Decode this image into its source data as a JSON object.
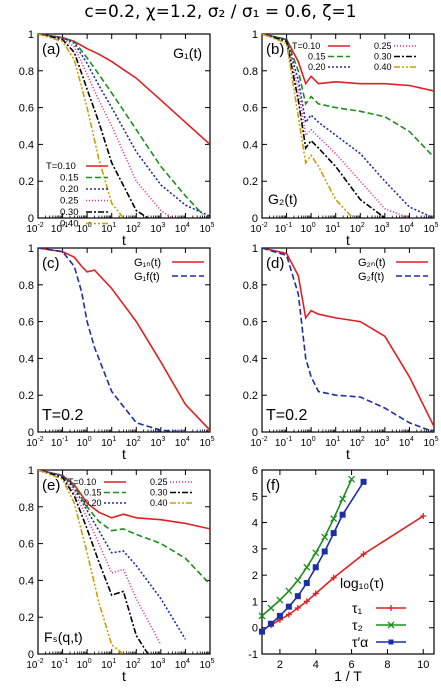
{
  "figure": {
    "title": "c=0.2, χ=1.2, σ₂ / σ₁ = 0.6, ζ=1"
  },
  "chart_data": [
    {
      "id": "a",
      "type": "line",
      "panel_label": "(a)",
      "corner_label": "G₁(t)",
      "xlabel": "t",
      "ylabel": "",
      "xscale": "log",
      "xlim": [
        0.01,
        100000
      ],
      "ylim": [
        0,
        1
      ],
      "legend_title": "T=",
      "legend_position": "bottom-left",
      "series": [
        {
          "name": "0.10",
          "color": "#e02020",
          "dash": "solid",
          "x": [
            0.01,
            0.1,
            0.3,
            1,
            3,
            10,
            100,
            1000,
            10000,
            100000
          ],
          "y": [
            1.0,
            0.98,
            0.96,
            0.92,
            0.89,
            0.85,
            0.76,
            0.64,
            0.52,
            0.4
          ]
        },
        {
          "name": "0.15",
          "color": "#1a8f1a",
          "dash": "dashed",
          "x": [
            0.01,
            0.1,
            0.3,
            1,
            3,
            10,
            100,
            1000,
            10000,
            50000
          ],
          "y": [
            1.0,
            0.98,
            0.96,
            0.87,
            0.78,
            0.68,
            0.48,
            0.28,
            0.12,
            0.02
          ]
        },
        {
          "name": "0.20",
          "color": "#1c2ea8",
          "dash": "dotted",
          "x": [
            0.01,
            0.1,
            0.3,
            1,
            3,
            10,
            100,
            1000,
            10000,
            100000
          ],
          "y": [
            1.0,
            0.98,
            0.95,
            0.84,
            0.72,
            0.6,
            0.36,
            0.18,
            0.07,
            0.01
          ]
        },
        {
          "name": "0.25",
          "color": "#e0208f",
          "dash": "dot",
          "x": [
            0.01,
            0.1,
            0.3,
            1,
            3,
            10,
            100,
            1000,
            3000
          ],
          "y": [
            1.0,
            0.98,
            0.93,
            0.78,
            0.64,
            0.5,
            0.2,
            0.04,
            0.0
          ]
        },
        {
          "name": "0.30",
          "color": "#000000",
          "dash": "dashdot",
          "x": [
            0.01,
            0.1,
            0.3,
            1,
            3,
            10,
            100,
            300
          ],
          "y": [
            1.0,
            0.97,
            0.9,
            0.7,
            0.52,
            0.3,
            0.04,
            0.0
          ]
        },
        {
          "name": "0.40",
          "color": "#c8a000",
          "dash": "dashdotdot",
          "x": [
            0.01,
            0.1,
            0.3,
            1,
            3,
            10,
            30
          ],
          "y": [
            1.0,
            0.96,
            0.86,
            0.6,
            0.32,
            0.08,
            0.0
          ]
        }
      ]
    },
    {
      "id": "b",
      "type": "line",
      "panel_label": "(b)",
      "corner_label": "G₂(t)",
      "xlabel": "t",
      "ylabel": "",
      "xscale": "log",
      "xlim": [
        0.01,
        100000
      ],
      "ylim": [
        0,
        1
      ],
      "legend_title": "T=",
      "legend_position": "top-right",
      "series": [
        {
          "name": "0.10",
          "color": "#e02020",
          "dash": "solid",
          "x": [
            0.01,
            0.1,
            0.3,
            0.6,
            1,
            2,
            10,
            100,
            1000,
            10000,
            100000
          ],
          "y": [
            1.0,
            0.97,
            0.85,
            0.73,
            0.77,
            0.73,
            0.74,
            0.73,
            0.73,
            0.72,
            0.69
          ]
        },
        {
          "name": "0.15",
          "color": "#1a8f1a",
          "dash": "dashed",
          "x": [
            0.01,
            0.1,
            0.3,
            0.6,
            1,
            2,
            10,
            100,
            1000,
            10000,
            100000
          ],
          "y": [
            1.0,
            0.97,
            0.8,
            0.62,
            0.66,
            0.62,
            0.6,
            0.58,
            0.55,
            0.47,
            0.33
          ]
        },
        {
          "name": "0.20",
          "color": "#1c2ea8",
          "dash": "dotted",
          "x": [
            0.01,
            0.1,
            0.3,
            0.6,
            1,
            2,
            10,
            100,
            1000,
            10000,
            100000
          ],
          "y": [
            1.0,
            0.97,
            0.75,
            0.52,
            0.56,
            0.52,
            0.45,
            0.35,
            0.2,
            0.06,
            0.0
          ]
        },
        {
          "name": "0.25",
          "color": "#e0208f",
          "dash": "dot",
          "x": [
            0.01,
            0.1,
            0.3,
            0.6,
            1,
            2,
            10,
            100,
            1000,
            10000
          ],
          "y": [
            1.0,
            0.96,
            0.7,
            0.45,
            0.48,
            0.44,
            0.35,
            0.2,
            0.05,
            0.0
          ]
        },
        {
          "name": "0.30",
          "color": "#000000",
          "dash": "dashdot",
          "x": [
            0.01,
            0.1,
            0.3,
            0.6,
            1,
            2,
            10,
            100,
            1000
          ],
          "y": [
            1.0,
            0.96,
            0.64,
            0.38,
            0.42,
            0.38,
            0.28,
            0.1,
            0.0
          ]
        },
        {
          "name": "0.40",
          "color": "#c8a000",
          "dash": "dashdotdot",
          "x": [
            0.01,
            0.1,
            0.3,
            0.6,
            1,
            2,
            10,
            50
          ],
          "y": [
            1.0,
            0.95,
            0.55,
            0.3,
            0.34,
            0.28,
            0.1,
            0.0
          ]
        }
      ]
    },
    {
      "id": "c",
      "type": "line",
      "panel_label": "(c)",
      "annotation": "T=0.2",
      "xlabel": "t",
      "ylabel": "",
      "xscale": "log",
      "xlim": [
        0.01,
        100000
      ],
      "ylim": [
        0,
        1
      ],
      "legend_position": "top-right",
      "series": [
        {
          "name": "G₁ₙ(t)",
          "color": "#e02020",
          "dash": "solid",
          "x": [
            0.01,
            0.1,
            0.3,
            0.6,
            1,
            2,
            10,
            100,
            1000,
            10000,
            100000
          ],
          "y": [
            1.0,
            0.98,
            0.95,
            0.9,
            0.87,
            0.88,
            0.78,
            0.6,
            0.38,
            0.15,
            0.01
          ]
        },
        {
          "name": "G₁f(t)",
          "color": "#1c2ea8",
          "dash": "dashed",
          "x": [
            0.01,
            0.1,
            0.3,
            0.6,
            1,
            2,
            10,
            100,
            1000,
            10000,
            100000
          ],
          "y": [
            1.0,
            0.98,
            0.9,
            0.76,
            0.6,
            0.46,
            0.22,
            0.05,
            0.01,
            0.0,
            0.0
          ]
        }
      ]
    },
    {
      "id": "d",
      "type": "line",
      "panel_label": "(d)",
      "annotation": "T=0.2",
      "xlabel": "t",
      "ylabel": "",
      "xscale": "log",
      "xlim": [
        0.01,
        100000
      ],
      "ylim": [
        0,
        1
      ],
      "legend_position": "top-right",
      "series": [
        {
          "name": "G₂ₙ(t)",
          "color": "#e02020",
          "dash": "solid",
          "x": [
            0.01,
            0.1,
            0.3,
            0.6,
            1,
            2,
            10,
            100,
            1000,
            10000,
            100000
          ],
          "y": [
            1.0,
            0.97,
            0.85,
            0.62,
            0.66,
            0.64,
            0.62,
            0.6,
            0.52,
            0.3,
            0.03
          ]
        },
        {
          "name": "G₂f(t)",
          "color": "#1c2ea8",
          "dash": "dashed",
          "x": [
            0.01,
            0.1,
            0.3,
            0.6,
            1,
            2,
            10,
            100,
            1000,
            10000,
            100000
          ],
          "y": [
            1.0,
            0.96,
            0.75,
            0.4,
            0.3,
            0.22,
            0.2,
            0.19,
            0.13,
            0.05,
            0.0
          ]
        }
      ]
    },
    {
      "id": "e",
      "type": "line",
      "panel_label": "(e)",
      "corner_label": "Fₛ(q,t)",
      "xlabel": "t",
      "ylabel": "",
      "xscale": "log",
      "xlim": [
        0.01,
        100000
      ],
      "ylim": [
        0,
        1
      ],
      "legend_title": "T=",
      "legend_position": "top-right",
      "series": [
        {
          "name": "0.10",
          "color": "#e02020",
          "dash": "solid",
          "x": [
            0.01,
            0.1,
            0.3,
            1,
            3,
            10,
            30,
            100,
            1000,
            10000,
            100000
          ],
          "y": [
            1.0,
            0.97,
            0.92,
            0.82,
            0.77,
            0.74,
            0.76,
            0.74,
            0.73,
            0.71,
            0.68
          ]
        },
        {
          "name": "0.15",
          "color": "#1a8f1a",
          "dash": "dashed",
          "x": [
            0.01,
            0.1,
            0.3,
            1,
            3,
            10,
            30,
            100,
            1000,
            10000,
            100000
          ],
          "y": [
            1.0,
            0.97,
            0.91,
            0.8,
            0.72,
            0.67,
            0.68,
            0.65,
            0.6,
            0.52,
            0.38
          ]
        },
        {
          "name": "0.20",
          "color": "#1c2ea8",
          "dash": "dotted",
          "x": [
            0.01,
            0.1,
            0.3,
            1,
            3,
            10,
            30,
            100,
            1000,
            10000
          ],
          "y": [
            1.0,
            0.97,
            0.9,
            0.78,
            0.67,
            0.55,
            0.56,
            0.48,
            0.3,
            0.08
          ]
        },
        {
          "name": "0.25",
          "color": "#e0208f",
          "dash": "dot",
          "x": [
            0.01,
            0.1,
            0.3,
            1,
            3,
            10,
            30,
            100,
            1000
          ],
          "y": [
            1.0,
            0.97,
            0.88,
            0.74,
            0.6,
            0.44,
            0.46,
            0.3,
            0.05
          ]
        },
        {
          "name": "0.30",
          "color": "#000000",
          "dash": "dashdot",
          "x": [
            0.01,
            0.1,
            0.3,
            1,
            3,
            10,
            30,
            100,
            300
          ],
          "y": [
            1.0,
            0.96,
            0.86,
            0.68,
            0.5,
            0.32,
            0.34,
            0.1,
            0.0
          ]
        },
        {
          "name": "0.40",
          "color": "#c8a000",
          "dash": "dashdotdot",
          "x": [
            0.01,
            0.1,
            0.3,
            1,
            3,
            10,
            30
          ],
          "y": [
            1.0,
            0.95,
            0.82,
            0.55,
            0.28,
            0.05,
            0.0
          ]
        }
      ]
    },
    {
      "id": "f",
      "type": "line",
      "panel_label": "(f)",
      "xlabel": "1 / T",
      "ylabel": "",
      "xscale": "linear",
      "xlim": [
        1,
        10.6
      ],
      "ylim": [
        -1,
        6
      ],
      "legend_title": "log₁₀(τ)",
      "legend_position": "bottom-right",
      "series": [
        {
          "name": "τ₁",
          "color": "#e02020",
          "marker": "plus",
          "x": [
            1.5,
            2,
            2.5,
            3,
            3.5,
            4,
            5,
            6.67,
            10
          ],
          "y": [
            0.1,
            0.3,
            0.5,
            0.75,
            1.0,
            1.3,
            1.9,
            2.8,
            4.25
          ]
        },
        {
          "name": "τ₂",
          "color": "#1a8f1a",
          "marker": "x",
          "x": [
            1,
            1.5,
            2,
            2.5,
            3,
            3.5,
            4,
            4.5,
            5,
            5.5,
            6
          ],
          "y": [
            0.45,
            0.75,
            1.05,
            1.4,
            1.8,
            2.3,
            2.85,
            3.45,
            4.15,
            4.9,
            5.65
          ]
        },
        {
          "name": "τ′α",
          "color": "#1c2ea8",
          "marker": "box",
          "x": [
            1,
            1.5,
            2,
            2.5,
            3,
            3.5,
            4,
            4.5,
            5,
            5.5,
            6.67
          ],
          "y": [
            -0.15,
            0.15,
            0.45,
            0.8,
            1.2,
            1.7,
            2.3,
            2.9,
            3.6,
            4.3,
            5.55
          ]
        }
      ]
    }
  ]
}
